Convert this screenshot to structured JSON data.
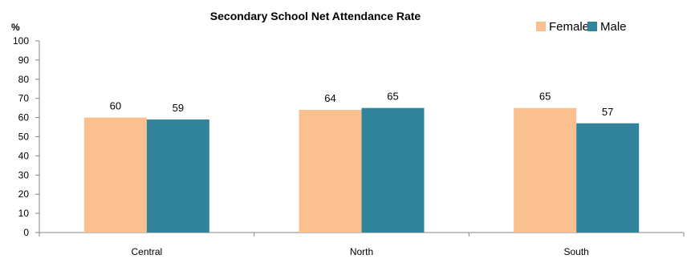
{
  "chart_data": {
    "type": "bar",
    "title": "Secondary School Net Attendance Rate",
    "ylabel": "%",
    "xlabel": "",
    "ylim": [
      0,
      100
    ],
    "yticks": [
      0,
      10,
      20,
      30,
      40,
      50,
      60,
      70,
      80,
      90,
      100
    ],
    "categories": [
      "Central",
      "North",
      "South"
    ],
    "series": [
      {
        "name": "Female",
        "values": [
          60,
          64,
          65
        ],
        "color": "#FAC090"
      },
      {
        "name": "Male",
        "values": [
          59,
          65,
          57
        ],
        "color": "#31849B"
      }
    ],
    "data_labels": true,
    "grid": false,
    "legend_position": "top-right"
  }
}
